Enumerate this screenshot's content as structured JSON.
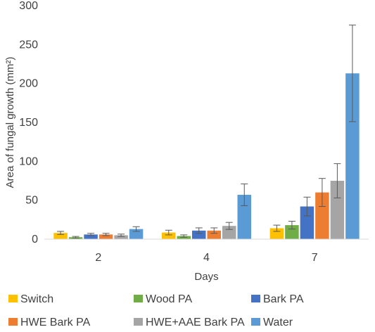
{
  "chart_data": {
    "type": "bar",
    "title": "",
    "xlabel": "Days",
    "ylabel": "Area of fungal growth (mm²)",
    "categories": [
      "2",
      "4",
      "7"
    ],
    "ylim": [
      0,
      300
    ],
    "yticks": [
      0,
      50,
      100,
      150,
      200,
      250,
      300
    ],
    "grid": false,
    "error_bars": true,
    "legend_position": "bottom",
    "series": [
      {
        "name": "Switch",
        "color": "#FFC000",
        "values": [
          8,
          8.5,
          14
        ],
        "errors": [
          2,
          3,
          4
        ]
      },
      {
        "name": "Wood PA",
        "color": "#70AD47",
        "values": [
          2.5,
          4,
          18
        ],
        "errors": [
          1,
          1.5,
          5
        ]
      },
      {
        "name": "Bark PA",
        "color": "#4472C4",
        "values": [
          6,
          11,
          42
        ],
        "errors": [
          1.5,
          3.5,
          12
        ]
      },
      {
        "name": "HWE Bark PA",
        "color": "#ED7D31",
        "values": [
          6,
          11,
          60
        ],
        "errors": [
          1.5,
          3.5,
          18
        ]
      },
      {
        "name": "HWE+AAE Bark PA",
        "color": "#A5A5A5",
        "values": [
          5,
          17,
          75
        ],
        "errors": [
          1.5,
          4.5,
          22
        ]
      },
      {
        "name": "Water",
        "color": "#5B9BD5",
        "values": [
          13,
          57,
          213
        ],
        "errors": [
          3,
          14,
          62
        ]
      }
    ]
  }
}
